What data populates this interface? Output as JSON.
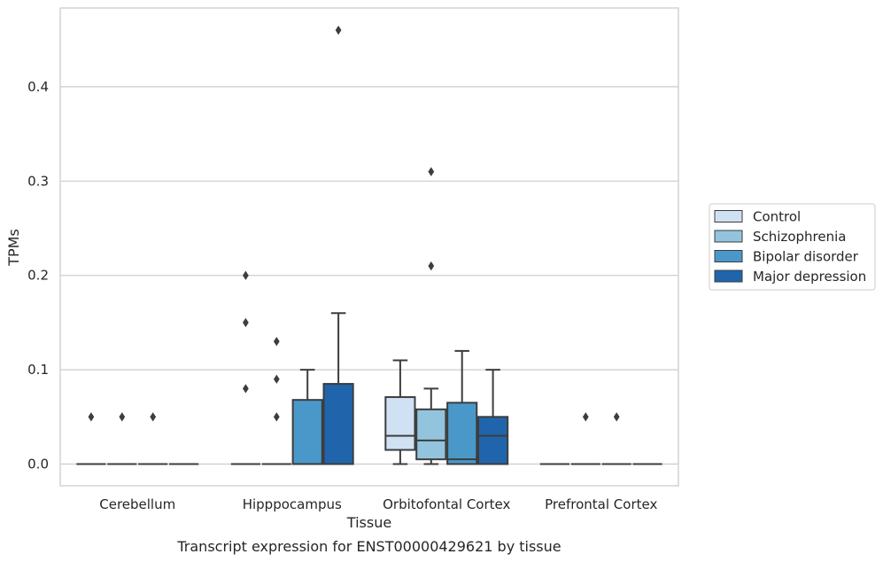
{
  "chart_data": {
    "type": "box",
    "title": "",
    "caption": "Transcript expression for ENST00000429621 by tissue",
    "xlabel": "Tissue",
    "ylabel": "TPMs",
    "ylim": [
      -0.022,
      0.485
    ],
    "yticks": [
      0.0,
      0.1,
      0.2,
      0.3,
      0.4
    ],
    "ytick_labels": [
      "0.0",
      "0.1",
      "0.2",
      "0.3",
      "0.4"
    ],
    "grid": "horizontal",
    "legend_position": "right",
    "categories": [
      "Cerebellum",
      "Hipppocampus",
      "Orbitofontal Cortex",
      "Prefrontal Cortex"
    ],
    "series": [
      {
        "name": "Control",
        "color": "#cfe1f2",
        "boxes": [
          {
            "q1": 0,
            "median": 0,
            "q3": 0,
            "whislo": 0,
            "whishi": 0,
            "fliers": [
              0.05
            ]
          },
          {
            "q1": 0,
            "median": 0,
            "q3": 0,
            "whislo": 0,
            "whishi": 0,
            "fliers": [
              0.08,
              0.15,
              0.2
            ]
          },
          {
            "q1": 0.015,
            "median": 0.03,
            "q3": 0.071,
            "whislo": 0,
            "whishi": 0.11,
            "fliers": []
          },
          {
            "q1": 0,
            "median": 0,
            "q3": 0,
            "whislo": 0,
            "whishi": 0,
            "fliers": []
          }
        ]
      },
      {
        "name": "Schizophrenia",
        "color": "#93c4de",
        "boxes": [
          {
            "q1": 0,
            "median": 0,
            "q3": 0,
            "whislo": 0,
            "whishi": 0,
            "fliers": [
              0.05
            ]
          },
          {
            "q1": 0,
            "median": 0,
            "q3": 0,
            "whislo": 0,
            "whishi": 0,
            "fliers": [
              0.05,
              0.09,
              0.13
            ]
          },
          {
            "q1": 0.005,
            "median": 0.025,
            "q3": 0.058,
            "whislo": 0,
            "whishi": 0.08,
            "fliers": [
              0.21,
              0.31
            ]
          },
          {
            "q1": 0,
            "median": 0,
            "q3": 0,
            "whislo": 0,
            "whishi": 0,
            "fliers": [
              0.05
            ]
          }
        ]
      },
      {
        "name": "Bipolar disorder",
        "color": "#4a98c9",
        "boxes": [
          {
            "q1": 0,
            "median": 0,
            "q3": 0,
            "whislo": 0,
            "whishi": 0,
            "fliers": [
              0.05
            ]
          },
          {
            "q1": 0,
            "median": 0,
            "q3": 0.068,
            "whislo": 0,
            "whishi": 0.1,
            "fliers": []
          },
          {
            "q1": 0,
            "median": 0.005,
            "q3": 0.065,
            "whislo": 0,
            "whishi": 0.12,
            "fliers": []
          },
          {
            "q1": 0,
            "median": 0,
            "q3": 0,
            "whislo": 0,
            "whishi": 0,
            "fliers": [
              0.05
            ]
          }
        ]
      },
      {
        "name": "Major depression",
        "color": "#2065ab",
        "boxes": [
          {
            "q1": 0,
            "median": 0,
            "q3": 0,
            "whislo": 0,
            "whishi": 0,
            "fliers": []
          },
          {
            "q1": 0,
            "median": 0,
            "q3": 0.085,
            "whislo": 0,
            "whishi": 0.16,
            "fliers": [
              0.46
            ]
          },
          {
            "q1": 0,
            "median": 0.03,
            "q3": 0.05,
            "whislo": 0,
            "whishi": 0.1,
            "fliers": []
          },
          {
            "q1": 0,
            "median": 0,
            "q3": 0,
            "whislo": 0,
            "whishi": 0,
            "fliers": []
          }
        ]
      }
    ]
  },
  "colors": {
    "grid": "#cccccc",
    "frame": "#cccccc",
    "box_edge": "#3d3d3d",
    "flier": "#3d3d3d"
  }
}
